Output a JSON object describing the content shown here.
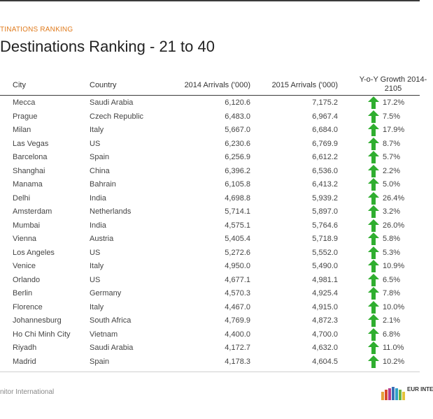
{
  "header": {
    "kicker": "TINATIONS RANKING",
    "title": "Destinations Ranking - 21 to 40"
  },
  "table": {
    "columns": {
      "city": "City",
      "country": "Country",
      "a2014": "2014 Arrivals ('000)",
      "a2015": "2015 Arrivals ('000)",
      "growth": "Y-o-Y Growth 2014-2105"
    },
    "rows": [
      {
        "city": "Mecca",
        "country": "Saudi Arabia",
        "a2014": "6,120.6",
        "a2015": "7,175.2",
        "growth": "17.2%"
      },
      {
        "city": "Prague",
        "country": "Czech Republic",
        "a2014": "6,483.0",
        "a2015": "6,967.4",
        "growth": "7.5%"
      },
      {
        "city": "Milan",
        "country": "Italy",
        "a2014": "5,667.0",
        "a2015": "6,684.0",
        "growth": "17.9%"
      },
      {
        "city": "Las Vegas",
        "country": "US",
        "a2014": "6,230.6",
        "a2015": "6,769.9",
        "growth": "8.7%"
      },
      {
        "city": "Barcelona",
        "country": "Spain",
        "a2014": "6,256.9",
        "a2015": "6,612.2",
        "growth": "5.7%"
      },
      {
        "city": "Shanghai",
        "country": "China",
        "a2014": "6,396.2",
        "a2015": "6,536.0",
        "growth": "2.2%"
      },
      {
        "city": "Manama",
        "country": "Bahrain",
        "a2014": "6,105.8",
        "a2015": "6,413.2",
        "growth": "5.0%"
      },
      {
        "city": "Delhi",
        "country": "India",
        "a2014": "4,698.8",
        "a2015": "5,939.2",
        "growth": "26.4%"
      },
      {
        "city": "Amsterdam",
        "country": "Netherlands",
        "a2014": "5,714.1",
        "a2015": "5,897.0",
        "growth": "3.2%"
      },
      {
        "city": "Mumbai",
        "country": "India",
        "a2014": "4,575.1",
        "a2015": "5,764.6",
        "growth": "26.0%"
      },
      {
        "city": "Vienna",
        "country": "Austria",
        "a2014": "5,405.4",
        "a2015": "5,718.9",
        "growth": "5.8%"
      },
      {
        "city": "Los Angeles",
        "country": "US",
        "a2014": "5,272.6",
        "a2015": "5,552.0",
        "growth": "5.3%"
      },
      {
        "city": "Venice",
        "country": "Italy",
        "a2014": "4,950.0",
        "a2015": "5,490.0",
        "growth": "10.9%"
      },
      {
        "city": "Orlando",
        "country": "US",
        "a2014": "4,677.1",
        "a2015": "4,981.1",
        "growth": "6.5%"
      },
      {
        "city": "Berlin",
        "country": "Germany",
        "a2014": "4,570.3",
        "a2015": "4,925.4",
        "growth": "7.8%"
      },
      {
        "city": "Florence",
        "country": "Italy",
        "a2014": "4,467.0",
        "a2015": "4,915.0",
        "growth": "10.0%"
      },
      {
        "city": "Johannesburg",
        "country": "South Africa",
        "a2014": "4,769.9",
        "a2015": "4,872.3",
        "growth": "2.1%"
      },
      {
        "city": "Ho Chi Minh City",
        "country": "Vietnam",
        "a2014": "4,400.0",
        "a2015": "4,700.0",
        "growth": "6.8%"
      },
      {
        "city": "Riyadh",
        "country": "Saudi Arabia",
        "a2014": "4,172.7",
        "a2015": "4,632.0",
        "growth": "11.0%"
      },
      {
        "city": "Madrid",
        "country": "Spain",
        "a2014": "4,178.3",
        "a2015": "4,604.5",
        "growth": "10.2%"
      }
    ]
  },
  "footer": {
    "source": "nitor International",
    "logo_text": "EUR INTE"
  },
  "colors": {
    "arrow": "#2fae2f",
    "kicker": "#e07b1d"
  },
  "icons": {
    "growth": "up-arrow-icon"
  }
}
